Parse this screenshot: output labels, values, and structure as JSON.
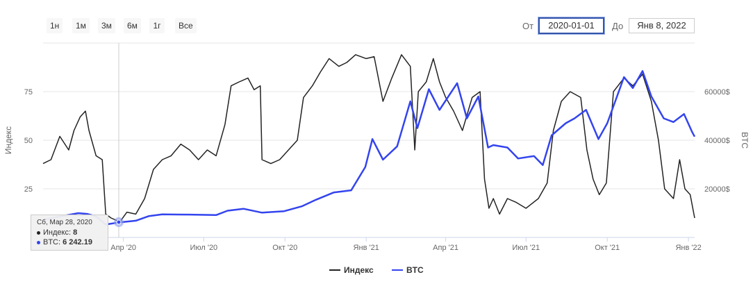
{
  "range_selector": {
    "buttons": [
      "1н",
      "1м",
      "3м",
      "6м",
      "1г",
      "Все"
    ],
    "from_label": "От",
    "from_value": "2020-01-01",
    "to_label": "До",
    "to_value": "Янв 8, 2022"
  },
  "tooltip": {
    "date": "Сб, Мар 28, 2020",
    "index_label": "Индекс",
    "index_value": "8",
    "btc_label": "BTC",
    "btc_value": "6 242.19"
  },
  "colors": {
    "index": "#222222",
    "btc": "#3344ee",
    "grid": "#e6e6e6"
  },
  "chart_data": {
    "type": "line",
    "x_ticks": [
      "Апр '20",
      "Июл '20",
      "Окт '20",
      "Янв '21",
      "Апр '21",
      "Июл '21",
      "Окт '21",
      "Янв '22"
    ],
    "x_tick_dates": [
      "2020-04-01",
      "2020-07-01",
      "2020-10-01",
      "2021-01-01",
      "2021-04-01",
      "2021-07-01",
      "2021-10-01",
      "2022-01-01"
    ],
    "xlim": [
      "2020-01-01",
      "2022-01-08"
    ],
    "left_axis": {
      "label": "Индекс",
      "ticks": [
        25,
        50,
        75
      ],
      "ylim": [
        0,
        100
      ]
    },
    "right_axis": {
      "label": "BTC",
      "ticks": [
        "20000$",
        "40000$",
        "60000$"
      ],
      "tick_values": [
        20000,
        40000,
        60000
      ],
      "ylim": [
        0,
        80000
      ]
    },
    "grid": true,
    "legend_position": "bottom-center",
    "series": [
      {
        "name": "Индекс",
        "axis": "left",
        "points": [
          [
            "2020-01-01",
            38
          ],
          [
            "2020-01-10",
            40
          ],
          [
            "2020-01-20",
            52
          ],
          [
            "2020-01-30",
            45
          ],
          [
            "2020-02-05",
            55
          ],
          [
            "2020-02-12",
            62
          ],
          [
            "2020-02-18",
            65
          ],
          [
            "2020-02-22",
            55
          ],
          [
            "2020-03-01",
            42
          ],
          [
            "2020-03-08",
            40
          ],
          [
            "2020-03-12",
            12
          ],
          [
            "2020-03-18",
            10
          ],
          [
            "2020-03-28",
            8
          ],
          [
            "2020-04-05",
            13
          ],
          [
            "2020-04-15",
            12
          ],
          [
            "2020-04-25",
            20
          ],
          [
            "2020-05-05",
            35
          ],
          [
            "2020-05-15",
            40
          ],
          [
            "2020-05-25",
            42
          ],
          [
            "2020-06-05",
            48
          ],
          [
            "2020-06-15",
            45
          ],
          [
            "2020-06-25",
            40
          ],
          [
            "2020-07-05",
            45
          ],
          [
            "2020-07-15",
            42
          ],
          [
            "2020-07-25",
            58
          ],
          [
            "2020-08-01",
            78
          ],
          [
            "2020-08-10",
            80
          ],
          [
            "2020-08-20",
            82
          ],
          [
            "2020-08-27",
            76
          ],
          [
            "2020-09-03",
            78
          ],
          [
            "2020-09-05",
            40
          ],
          [
            "2020-09-15",
            38
          ],
          [
            "2020-09-25",
            40
          ],
          [
            "2020-10-05",
            45
          ],
          [
            "2020-10-15",
            50
          ],
          [
            "2020-10-22",
            72
          ],
          [
            "2020-11-01",
            78
          ],
          [
            "2020-11-10",
            85
          ],
          [
            "2020-11-20",
            92
          ],
          [
            "2020-12-01",
            88
          ],
          [
            "2020-12-10",
            90
          ],
          [
            "2020-12-20",
            94
          ],
          [
            "2021-01-01",
            92
          ],
          [
            "2021-01-10",
            93
          ],
          [
            "2021-01-20",
            70
          ],
          [
            "2021-01-30",
            82
          ],
          [
            "2021-02-10",
            94
          ],
          [
            "2021-02-20",
            88
          ],
          [
            "2021-02-25",
            45
          ],
          [
            "2021-03-01",
            75
          ],
          [
            "2021-03-10",
            80
          ],
          [
            "2021-03-18",
            92
          ],
          [
            "2021-03-25",
            80
          ],
          [
            "2021-04-01",
            72
          ],
          [
            "2021-04-10",
            65
          ],
          [
            "2021-04-20",
            55
          ],
          [
            "2021-05-01",
            72
          ],
          [
            "2021-05-10",
            75
          ],
          [
            "2021-05-15",
            30
          ],
          [
            "2021-05-20",
            15
          ],
          [
            "2021-05-25",
            20
          ],
          [
            "2021-06-01",
            12
          ],
          [
            "2021-06-10",
            20
          ],
          [
            "2021-06-20",
            18
          ],
          [
            "2021-07-01",
            15
          ],
          [
            "2021-07-15",
            20
          ],
          [
            "2021-07-25",
            28
          ],
          [
            "2021-08-01",
            55
          ],
          [
            "2021-08-10",
            70
          ],
          [
            "2021-08-20",
            75
          ],
          [
            "2021-09-01",
            72
          ],
          [
            "2021-09-08",
            45
          ],
          [
            "2021-09-15",
            30
          ],
          [
            "2021-09-22",
            22
          ],
          [
            "2021-09-30",
            28
          ],
          [
            "2021-10-08",
            75
          ],
          [
            "2021-10-20",
            82
          ],
          [
            "2021-10-30",
            78
          ],
          [
            "2021-11-10",
            84
          ],
          [
            "2021-11-20",
            70
          ],
          [
            "2021-11-28",
            50
          ],
          [
            "2021-12-05",
            25
          ],
          [
            "2021-12-15",
            20
          ],
          [
            "2021-12-22",
            40
          ],
          [
            "2021-12-28",
            25
          ],
          [
            "2022-01-03",
            22
          ],
          [
            "2022-01-08",
            10
          ]
        ]
      },
      {
        "name": "BTC",
        "axis": "right",
        "points": [
          [
            "2020-01-01",
            7200
          ],
          [
            "2020-01-20",
            8600
          ],
          [
            "2020-02-10",
            10000
          ],
          [
            "2020-02-20",
            9700
          ],
          [
            "2020-03-01",
            8700
          ],
          [
            "2020-03-12",
            5300
          ],
          [
            "2020-03-28",
            6242
          ],
          [
            "2020-04-15",
            6900
          ],
          [
            "2020-04-30",
            8800
          ],
          [
            "2020-05-15",
            9500
          ],
          [
            "2020-06-15",
            9400
          ],
          [
            "2020-07-15",
            9200
          ],
          [
            "2020-07-28",
            11000
          ],
          [
            "2020-08-15",
            11800
          ],
          [
            "2020-09-05",
            10200
          ],
          [
            "2020-09-30",
            10800
          ],
          [
            "2020-10-20",
            12800
          ],
          [
            "2020-11-05",
            15500
          ],
          [
            "2020-11-25",
            18500
          ],
          [
            "2020-12-15",
            19400
          ],
          [
            "2020-12-31",
            29000
          ],
          [
            "2021-01-08",
            40500
          ],
          [
            "2021-01-20",
            32000
          ],
          [
            "2021-02-05",
            37500
          ],
          [
            "2021-02-20",
            56000
          ],
          [
            "2021-02-28",
            45000
          ],
          [
            "2021-03-13",
            61000
          ],
          [
            "2021-03-25",
            52500
          ],
          [
            "2021-04-14",
            63500
          ],
          [
            "2021-04-25",
            49000
          ],
          [
            "2021-05-08",
            58000
          ],
          [
            "2021-05-19",
            37000
          ],
          [
            "2021-05-25",
            38000
          ],
          [
            "2021-06-10",
            37000
          ],
          [
            "2021-06-22",
            32500
          ],
          [
            "2021-07-10",
            33500
          ],
          [
            "2021-07-20",
            29800
          ],
          [
            "2021-07-30",
            42000
          ],
          [
            "2021-08-15",
            47000
          ],
          [
            "2021-08-25",
            49000
          ],
          [
            "2021-09-07",
            52500
          ],
          [
            "2021-09-21",
            40500
          ],
          [
            "2021-10-01",
            47000
          ],
          [
            "2021-10-15",
            61000
          ],
          [
            "2021-10-20",
            66000
          ],
          [
            "2021-10-30",
            61500
          ],
          [
            "2021-11-10",
            68500
          ],
          [
            "2021-11-20",
            58000
          ],
          [
            "2021-12-04",
            49000
          ],
          [
            "2021-12-15",
            47500
          ],
          [
            "2021-12-27",
            50800
          ],
          [
            "2022-01-05",
            43500
          ],
          [
            "2022-01-08",
            41500
          ]
        ]
      }
    ]
  }
}
